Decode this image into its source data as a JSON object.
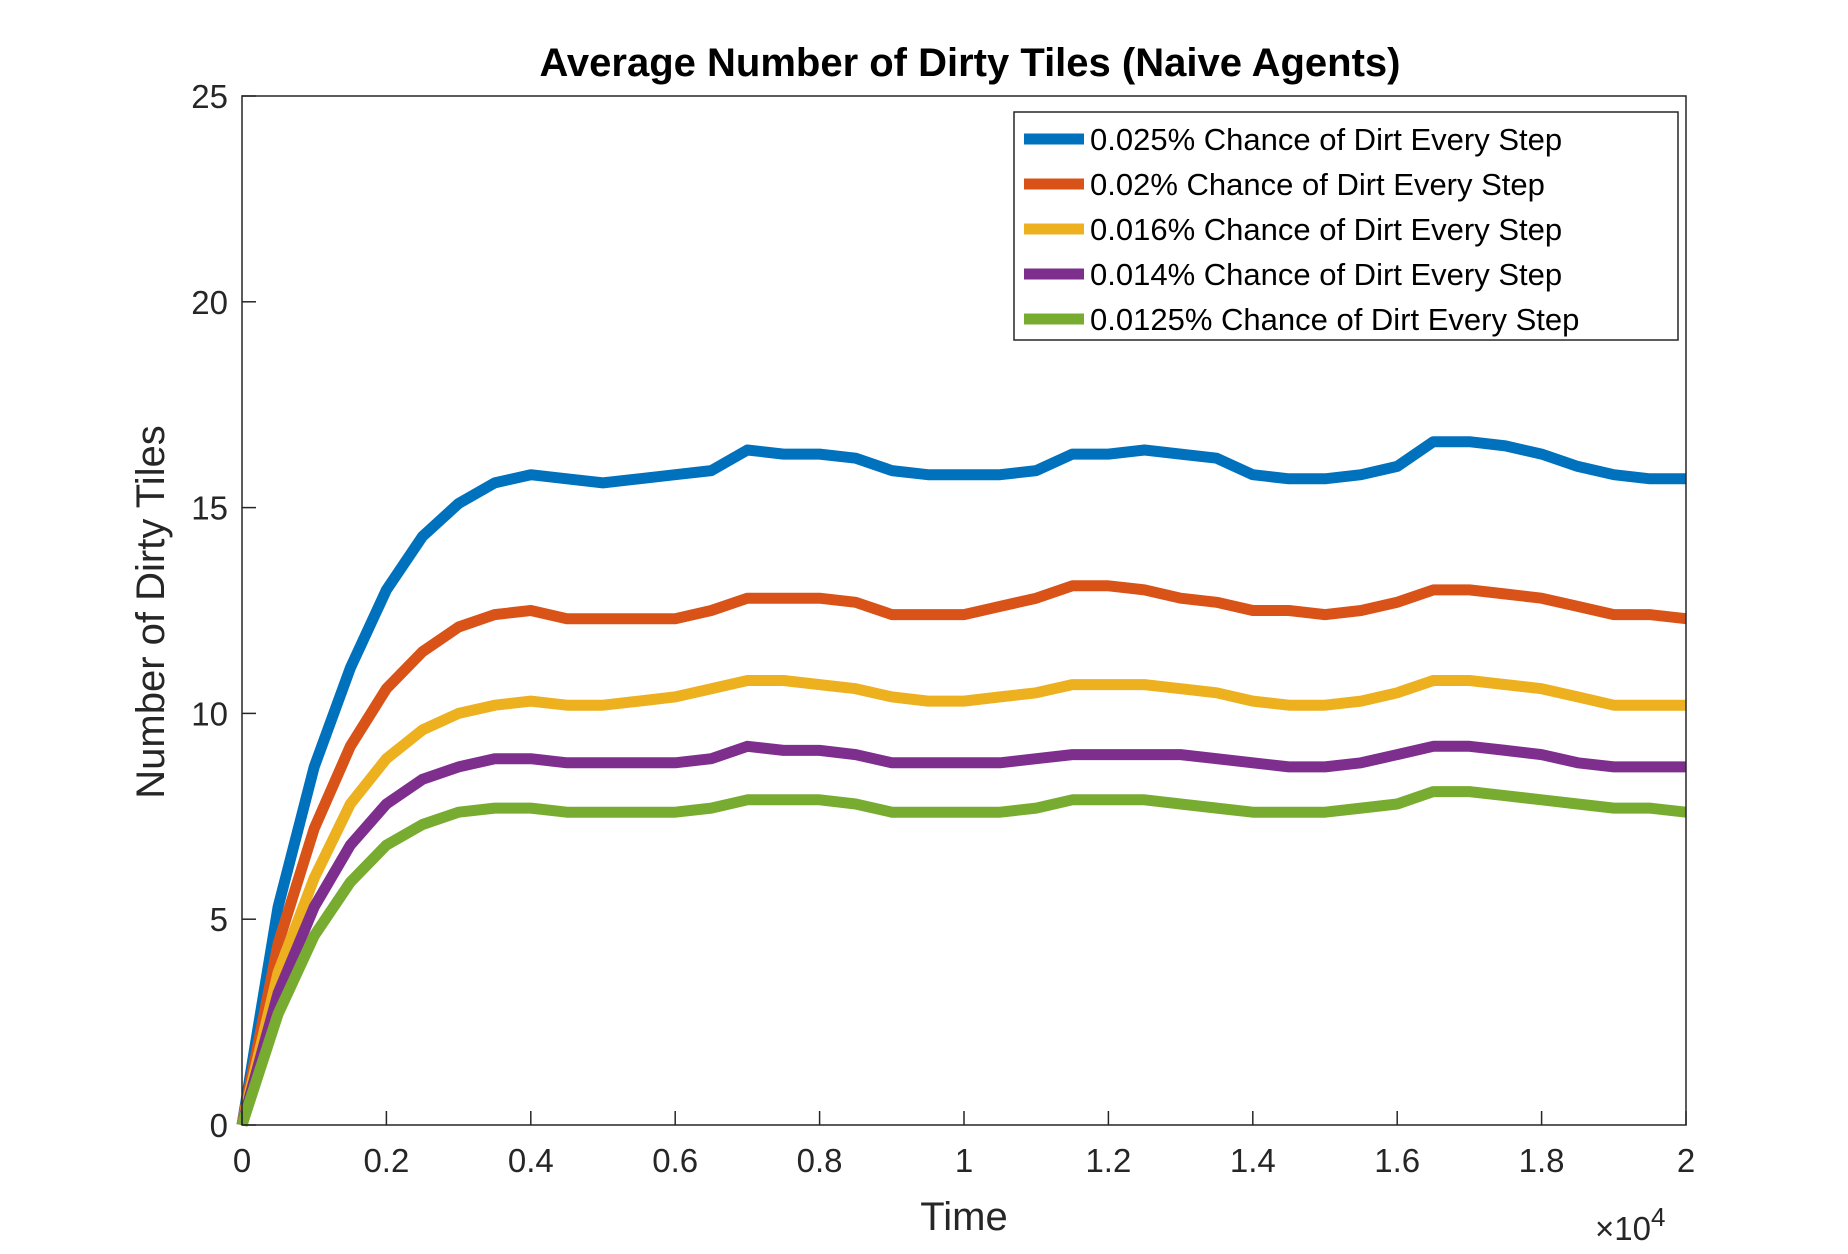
{
  "chart_data": {
    "type": "line",
    "title": "Average Number of Dirty Tiles (Naive Agents)",
    "xlabel": "Time",
    "ylabel": "Number of Dirty Tiles",
    "x_exponent_base": "×10",
    "x_exponent_power": "4",
    "xlim": [
      0,
      20000
    ],
    "ylim": [
      0,
      25
    ],
    "x_ticks": [
      0,
      2000,
      4000,
      6000,
      8000,
      10000,
      12000,
      14000,
      16000,
      18000,
      20000
    ],
    "x_tick_labels": [
      "0",
      "0.2",
      "0.4",
      "0.6",
      "0.8",
      "1",
      "1.2",
      "1.4",
      "1.6",
      "1.8",
      "2"
    ],
    "y_ticks": [
      0,
      5,
      10,
      15,
      20,
      25
    ],
    "y_tick_labels": [
      "0",
      "5",
      "10",
      "15",
      "20",
      "25"
    ],
    "grid": false,
    "legend_position": "top-right",
    "x": [
      0,
      500,
      1000,
      1500,
      2000,
      2500,
      3000,
      3500,
      4000,
      4500,
      5000,
      5500,
      6000,
      6500,
      7000,
      7500,
      8000,
      8500,
      9000,
      9500,
      10000,
      10500,
      11000,
      11500,
      12000,
      12500,
      13000,
      13500,
      14000,
      14500,
      15000,
      15500,
      16000,
      16500,
      17000,
      17500,
      18000,
      18500,
      19000,
      19500,
      20000
    ],
    "series": [
      {
        "name": "0.025% Chance of Dirt Every Step",
        "color": "#0072BD",
        "values": [
          0,
          5.3,
          8.7,
          11.1,
          13.0,
          14.3,
          15.1,
          15.6,
          15.8,
          15.7,
          15.6,
          15.7,
          15.8,
          15.9,
          16.4,
          16.3,
          16.3,
          16.2,
          15.9,
          15.8,
          15.8,
          15.8,
          15.9,
          16.3,
          16.3,
          16.4,
          16.3,
          16.2,
          15.8,
          15.7,
          15.7,
          15.8,
          16.0,
          16.6,
          16.6,
          16.5,
          16.3,
          16.0,
          15.8,
          15.7,
          15.7
        ]
      },
      {
        "name": "0.02% Chance of Dirt Every Step",
        "color": "#D95319",
        "values": [
          0,
          4.4,
          7.2,
          9.2,
          10.6,
          11.5,
          12.1,
          12.4,
          12.5,
          12.3,
          12.3,
          12.3,
          12.3,
          12.5,
          12.8,
          12.8,
          12.8,
          12.7,
          12.4,
          12.4,
          12.4,
          12.6,
          12.8,
          13.1,
          13.1,
          13.0,
          12.8,
          12.7,
          12.5,
          12.5,
          12.4,
          12.5,
          12.7,
          13.0,
          13.0,
          12.9,
          12.8,
          12.6,
          12.4,
          12.4,
          12.3
        ]
      },
      {
        "name": "0.016% Chance of Dirt Every Step",
        "color": "#EDB120",
        "values": [
          0,
          3.7,
          6.0,
          7.8,
          8.9,
          9.6,
          10.0,
          10.2,
          10.3,
          10.2,
          10.2,
          10.3,
          10.4,
          10.6,
          10.8,
          10.8,
          10.7,
          10.6,
          10.4,
          10.3,
          10.3,
          10.4,
          10.5,
          10.7,
          10.7,
          10.7,
          10.6,
          10.5,
          10.3,
          10.2,
          10.2,
          10.3,
          10.5,
          10.8,
          10.8,
          10.7,
          10.6,
          10.4,
          10.2,
          10.2,
          10.2
        ]
      },
      {
        "name": "0.014% Chance of Dirt Every Step",
        "color": "#7E2F8E",
        "values": [
          0,
          3.2,
          5.3,
          6.8,
          7.8,
          8.4,
          8.7,
          8.9,
          8.9,
          8.8,
          8.8,
          8.8,
          8.8,
          8.9,
          9.2,
          9.1,
          9.1,
          9.0,
          8.8,
          8.8,
          8.8,
          8.8,
          8.9,
          9.0,
          9.0,
          9.0,
          9.0,
          8.9,
          8.8,
          8.7,
          8.7,
          8.8,
          9.0,
          9.2,
          9.2,
          9.1,
          9.0,
          8.8,
          8.7,
          8.7,
          8.7
        ]
      },
      {
        "name": "0.0125% Chance of Dirt Every Step",
        "color": "#77AC30",
        "values": [
          0,
          2.7,
          4.6,
          5.9,
          6.8,
          7.3,
          7.6,
          7.7,
          7.7,
          7.6,
          7.6,
          7.6,
          7.6,
          7.7,
          7.9,
          7.9,
          7.9,
          7.8,
          7.6,
          7.6,
          7.6,
          7.6,
          7.7,
          7.9,
          7.9,
          7.9,
          7.8,
          7.7,
          7.6,
          7.6,
          7.6,
          7.7,
          7.8,
          8.1,
          8.1,
          8.0,
          7.9,
          7.8,
          7.7,
          7.7,
          7.6
        ]
      }
    ]
  }
}
